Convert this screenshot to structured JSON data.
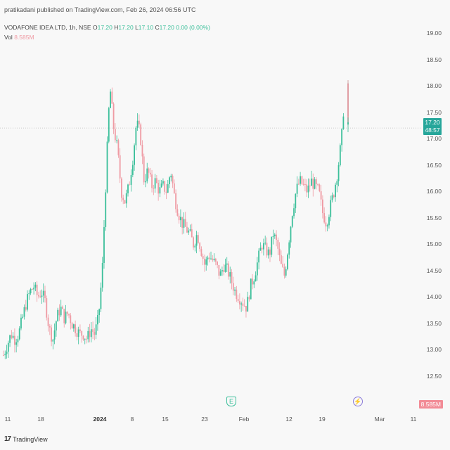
{
  "header": {
    "publisher": "pratikadani published on TradingView.com, Feb 26, 2024 06:56 UTC"
  },
  "legend": {
    "symbol": "VODAFONE IDEA LTD, 1h, NSE",
    "o_label": "O",
    "o_value": "17.20",
    "h_label": "H",
    "h_value": "17.20",
    "l_label": "L",
    "l_value": "17.10",
    "c_label": "C",
    "c_value": "17.20",
    "change": "0.00 (0.00%)"
  },
  "volume": {
    "label": "Vol",
    "value": "8.585M"
  },
  "price_badge": {
    "price": "17.20",
    "countdown": "48:57"
  },
  "events": {
    "earnings_icon": "earnings-icon",
    "split_icon": "lightning-icon",
    "earnings_glyph": "E",
    "split_glyph": "⚡"
  },
  "branding": {
    "logo_mark": "17",
    "text": "TradingView"
  },
  "colors": {
    "up": "#3bbf9a",
    "down": "#ef9aa3",
    "badge": "#26a69a",
    "vol_badge": "#f28b96"
  },
  "chart_data": {
    "type": "candlestick",
    "y_axis_ticks": [
      "19.00",
      "18.50",
      "18.00",
      "17.50",
      "17.00",
      "16.50",
      "16.00",
      "15.50",
      "15.00",
      "14.50",
      "14.00",
      "13.50",
      "13.00",
      "12.50"
    ],
    "ylim": [
      12.3,
      19.2
    ],
    "x_axis_ticks": [
      "11",
      "18",
      "2024",
      "8",
      "15",
      "23",
      "Feb",
      "12",
      "19",
      "Mar",
      "11"
    ],
    "last_price": 17.2,
    "series": [
      {
        "name": "VODAFONE IDEA LTD",
        "close_path": [
          12.9,
          13.1,
          13.3,
          13.2,
          13.3,
          13.6,
          13.9,
          14.1,
          14.2,
          14.0,
          14.1,
          13.9,
          13.4,
          13.2,
          13.6,
          13.8,
          13.6,
          13.7,
          13.5,
          13.4,
          13.3,
          13.3,
          13.2,
          13.4,
          13.3,
          13.6,
          14.5,
          16.3,
          18.0,
          17.2,
          16.8,
          16.0,
          15.8,
          16.1,
          16.6,
          17.3,
          17.1,
          16.2,
          16.4,
          16.1,
          16.2,
          16.0,
          16.1,
          16.0,
          16.4,
          15.9,
          15.6,
          15.4,
          15.3,
          15.2,
          15.0,
          15.2,
          14.9,
          14.6,
          14.8,
          14.7,
          14.6,
          14.4,
          14.6,
          14.5,
          14.3,
          14.1,
          14.0,
          13.9,
          13.8,
          14.2,
          14.4,
          14.7,
          15.0,
          14.9,
          14.8,
          15.2,
          15.0,
          14.6,
          14.4,
          15.0,
          15.6,
          16.0,
          16.2,
          16.1,
          16.0,
          16.2,
          16.1,
          16.0,
          15.6,
          15.4,
          15.7,
          16.0,
          16.4,
          17.0,
          18.1,
          17.6,
          17.2
        ]
      }
    ]
  }
}
